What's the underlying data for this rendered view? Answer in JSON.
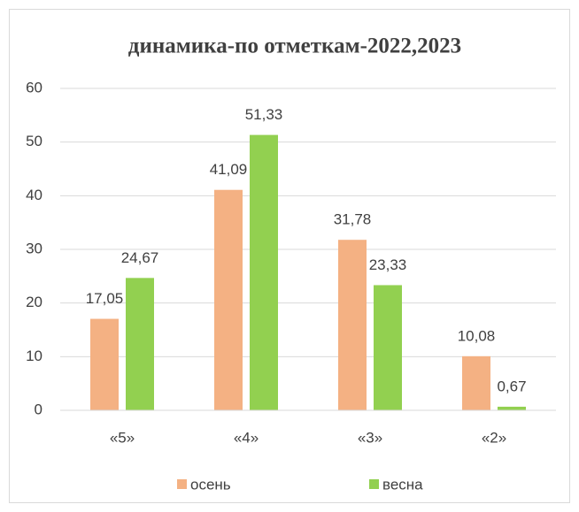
{
  "chart_data": {
    "type": "bar",
    "title": "динамика-по отметкам-2022,2023",
    "categories": [
      "«5»",
      "«4»",
      "«3»",
      "«2»"
    ],
    "series": [
      {
        "name": "осень",
        "color": "#f4b183",
        "values": [
          17.05,
          41.09,
          31.78,
          10.08
        ],
        "value_labels": [
          "17,05",
          "41,09",
          "31,78",
          "10,08"
        ]
      },
      {
        "name": "весна",
        "color": "#92d050",
        "values": [
          24.67,
          51.33,
          23.33,
          0.67
        ],
        "value_labels": [
          "24,67",
          "51,33",
          "23,33",
          "0,67"
        ]
      }
    ],
    "ylim": [
      0,
      60
    ],
    "yticks": [
      0,
      10,
      20,
      30,
      40,
      50,
      60
    ],
    "grid": true,
    "legend": "bottom"
  }
}
